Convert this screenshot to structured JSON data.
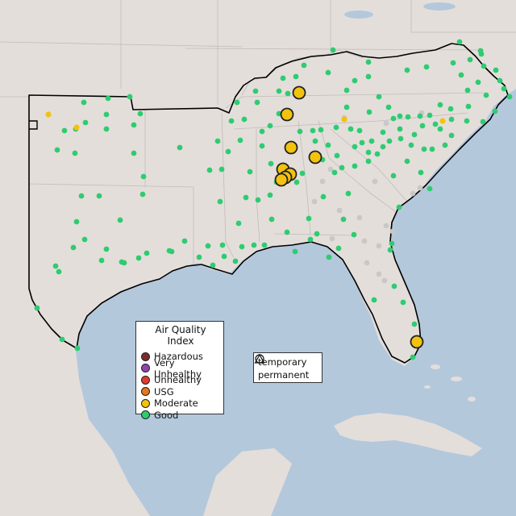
{
  "legend": {
    "title": "Air Quality Index",
    "categories": [
      {
        "label": "Hazardous",
        "color": "#7e2a2c"
      },
      {
        "label": "Very Unhealthy",
        "color": "#8e44ad"
      },
      {
        "label": "Unhealthy",
        "color": "#e03c2c"
      },
      {
        "label": "USG",
        "color": "#e8761c"
      },
      {
        "label": "Moderate",
        "color": "#f2c20f"
      },
      {
        "label": "Good",
        "color": "#2ecc71"
      }
    ],
    "shapes": [
      {
        "label": "temporary",
        "icon": "circle-icon"
      },
      {
        "label": "permanent",
        "icon": "triangle-icon"
      }
    ]
  },
  "colors": {
    "water": "#b4c8dc",
    "land": "#e4dedb",
    "highlight_border": "#000000",
    "no_data_monitor": "#c8c8c8"
  }
}
